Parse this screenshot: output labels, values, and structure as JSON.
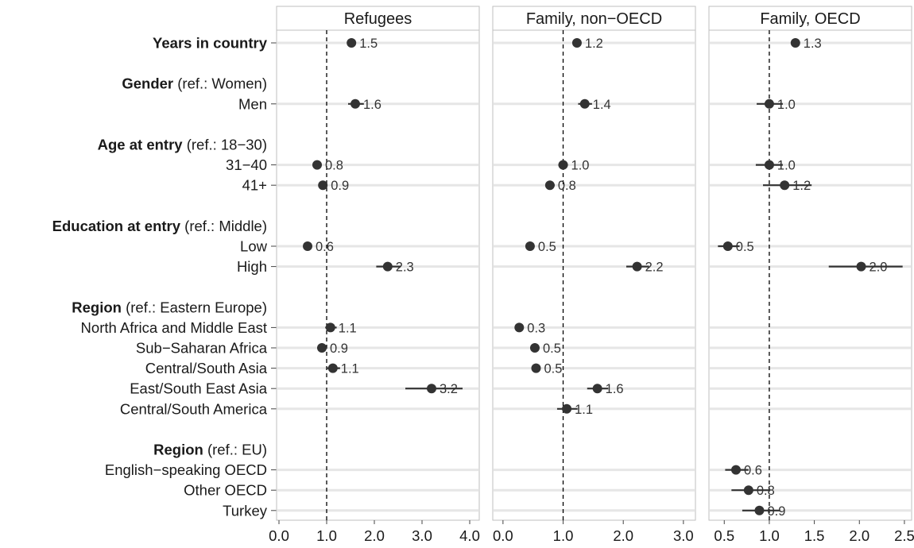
{
  "chart_data": {
    "type": "forest",
    "reference_line": 1.0,
    "rows": [
      {
        "key": "years",
        "label": "Years in country",
        "bold": true
      },
      {
        "key": "gender_header",
        "label_bold": "Gender",
        "label_rest": " (ref.: Women)",
        "header": true
      },
      {
        "key": "men",
        "label": "Men"
      },
      {
        "key": "age_header",
        "label_bold": "Age at entry",
        "label_rest": " (ref.: 18−30)",
        "header": true
      },
      {
        "key": "age_31_40",
        "label": "31−40"
      },
      {
        "key": "age_41",
        "label": "41+"
      },
      {
        "key": "edu_header",
        "label_bold": "Education at entry",
        "label_rest": " (ref.: Middle)",
        "header": true
      },
      {
        "key": "low",
        "label": "Low"
      },
      {
        "key": "high",
        "label": "High"
      },
      {
        "key": "region1_header",
        "label_bold": "Region",
        "label_rest": " (ref.: Eastern Europe)",
        "header": true
      },
      {
        "key": "nafrica",
        "label": "North Africa and Middle East"
      },
      {
        "key": "ssafrica",
        "label": "Sub−Saharan Africa"
      },
      {
        "key": "csasia",
        "label": "Central/South Asia"
      },
      {
        "key": "eseasia",
        "label": "East/South East Asia"
      },
      {
        "key": "csamerica",
        "label": "Central/South America"
      },
      {
        "key": "region2_header",
        "label_bold": "Region",
        "label_rest": " (ref.: EU)",
        "header": true
      },
      {
        "key": "english",
        "label": "English−speaking OECD"
      },
      {
        "key": "otheroecd",
        "label": "Other OECD"
      },
      {
        "key": "turkey",
        "label": "Turkey"
      }
    ],
    "panels": [
      {
        "title": "Refugees",
        "xlim": [
          -0.05,
          4.2
        ],
        "ticks": [
          0,
          1,
          2,
          3,
          4
        ],
        "tick_labels": [
          "0.0",
          "1.0",
          "2.0",
          "3.0",
          "4.0"
        ],
        "points": [
          {
            "row": "years",
            "value": 1.52,
            "lo": 1.47,
            "hi": 1.57,
            "label": "1.5"
          },
          {
            "row": "men",
            "value": 1.6,
            "lo": 1.45,
            "hi": 1.78,
            "label": "1.6"
          },
          {
            "row": "age_31_40",
            "value": 0.8,
            "lo": 0.75,
            "hi": 0.87,
            "label": "0.8"
          },
          {
            "row": "age_41",
            "value": 0.92,
            "lo": 0.84,
            "hi": 1.01,
            "label": "0.9"
          },
          {
            "row": "low",
            "value": 0.6,
            "lo": 0.55,
            "hi": 0.66,
            "label": "0.6"
          },
          {
            "row": "high",
            "value": 2.28,
            "lo": 2.04,
            "hi": 2.55,
            "label": "2.3"
          },
          {
            "row": "nafrica",
            "value": 1.08,
            "lo": 0.97,
            "hi": 1.21,
            "label": "1.1"
          },
          {
            "row": "ssafrica",
            "value": 0.9,
            "lo": 0.8,
            "hi": 1.01,
            "label": "0.9"
          },
          {
            "row": "csasia",
            "value": 1.13,
            "lo": 1.0,
            "hi": 1.28,
            "label": "1.1"
          },
          {
            "row": "eseasia",
            "value": 3.2,
            "lo": 2.65,
            "hi": 3.85,
            "label": "3.2"
          }
        ]
      },
      {
        "title": "Family, non−OECD",
        "xlim": [
          -0.17,
          3.2
        ],
        "ticks": [
          0,
          1,
          2,
          3
        ],
        "tick_labels": [
          "0.0",
          "1.0",
          "2.0",
          "3.0"
        ],
        "points": [
          {
            "row": "years",
            "value": 1.23,
            "lo": 1.18,
            "hi": 1.28,
            "label": "1.2"
          },
          {
            "row": "men",
            "value": 1.36,
            "lo": 1.25,
            "hi": 1.48,
            "label": "1.4"
          },
          {
            "row": "age_31_40",
            "value": 1.0,
            "lo": 0.92,
            "hi": 1.08,
            "label": "1.0"
          },
          {
            "row": "age_41",
            "value": 0.78,
            "lo": 0.71,
            "hi": 0.86,
            "label": "0.8"
          },
          {
            "row": "low",
            "value": 0.45,
            "lo": 0.41,
            "hi": 0.5,
            "label": "0.5"
          },
          {
            "row": "high",
            "value": 2.23,
            "lo": 2.05,
            "hi": 2.43,
            "label": "2.2"
          },
          {
            "row": "nafrica",
            "value": 0.27,
            "lo": 0.23,
            "hi": 0.31,
            "label": "0.3"
          },
          {
            "row": "ssafrica",
            "value": 0.53,
            "lo": 0.47,
            "hi": 0.6,
            "label": "0.5"
          },
          {
            "row": "csasia",
            "value": 0.55,
            "lo": 0.49,
            "hi": 0.62,
            "label": "0.5"
          },
          {
            "row": "eseasia",
            "value": 1.57,
            "lo": 1.4,
            "hi": 1.75,
            "label": "1.6"
          },
          {
            "row": "csamerica",
            "value": 1.06,
            "lo": 0.9,
            "hi": 1.24,
            "label": "1.1"
          }
        ]
      },
      {
        "title": "Family, OECD",
        "xlim": [
          0.33,
          2.58
        ],
        "ticks": [
          0.5,
          1.0,
          1.5,
          2.0,
          2.5
        ],
        "tick_labels": [
          "0.5",
          "1.0",
          "1.5",
          "2.0",
          "2.5"
        ],
        "points": [
          {
            "row": "years",
            "value": 1.29,
            "lo": 1.25,
            "hi": 1.33,
            "label": "1.3"
          },
          {
            "row": "men",
            "value": 1.0,
            "lo": 0.86,
            "hi": 1.15,
            "label": "1.0"
          },
          {
            "row": "age_31_40",
            "value": 1.0,
            "lo": 0.85,
            "hi": 1.15,
            "label": "1.0"
          },
          {
            "row": "age_41",
            "value": 1.17,
            "lo": 0.93,
            "hi": 1.47,
            "label": "1.2"
          },
          {
            "row": "low",
            "value": 0.54,
            "lo": 0.43,
            "hi": 0.67,
            "label": "0.5"
          },
          {
            "row": "high",
            "value": 2.02,
            "lo": 1.66,
            "hi": 2.48,
            "label": "2.0"
          },
          {
            "row": "english",
            "value": 0.63,
            "lo": 0.51,
            "hi": 0.77,
            "label": "0.6"
          },
          {
            "row": "otheroecd",
            "value": 0.77,
            "lo": 0.58,
            "hi": 1.0,
            "label": "0.8"
          },
          {
            "row": "turkey",
            "value": 0.89,
            "lo": 0.7,
            "hi": 1.12,
            "label": "0.9"
          }
        ]
      }
    ],
    "colors": {
      "point": "#333333",
      "ci": "#333333",
      "gridline": "#e6e6e6",
      "panel_border": "#bfbfbf",
      "reference_line": "#000000",
      "text": "#1a1a1a",
      "value_label": "#333333"
    }
  }
}
